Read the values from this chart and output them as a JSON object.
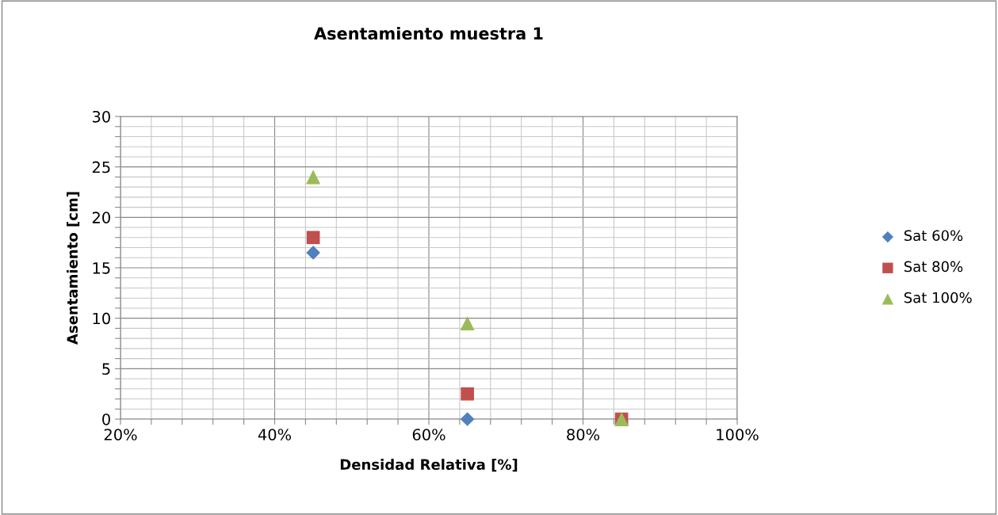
{
  "chart_data": {
    "type": "scatter",
    "title": "Asentamiento muestra 1",
    "xlabel": "Densidad Relativa [%]",
    "ylabel": "Asentamiento [cm]",
    "xlim": [
      20,
      100
    ],
    "ylim": [
      0,
      30
    ],
    "xticks": [
      {
        "value": 20,
        "label": "20%"
      },
      {
        "value": 24,
        "label": null
      },
      {
        "value": 28,
        "label": null
      },
      {
        "value": 32,
        "label": null
      },
      {
        "value": 36,
        "label": null
      },
      {
        "value": 40,
        "label": "40%"
      },
      {
        "value": 44,
        "label": null
      },
      {
        "value": 48,
        "label": null
      },
      {
        "value": 52,
        "label": null
      },
      {
        "value": 56,
        "label": null
      },
      {
        "value": 60,
        "label": "60%"
      },
      {
        "value": 64,
        "label": null
      },
      {
        "value": 68,
        "label": null
      },
      {
        "value": 72,
        "label": null
      },
      {
        "value": 76,
        "label": null
      },
      {
        "value": 80,
        "label": "80%"
      },
      {
        "value": 84,
        "label": null
      },
      {
        "value": 88,
        "label": null
      },
      {
        "value": 92,
        "label": null
      },
      {
        "value": 96,
        "label": null
      },
      {
        "value": 100,
        "label": "100%"
      }
    ],
    "yticks": [
      0,
      {
        "value": 1,
        "label": null
      },
      {
        "value": 2,
        "label": null
      },
      {
        "value": 3,
        "label": null
      },
      {
        "value": 4,
        "label": null
      },
      5,
      {
        "value": 6,
        "label": null
      },
      {
        "value": 7,
        "label": null
      },
      {
        "value": 8,
        "label": null
      },
      {
        "value": 9,
        "label": null
      },
      10,
      {
        "value": 11,
        "label": null
      },
      {
        "value": 12,
        "label": null
      },
      {
        "value": 13,
        "label": null
      },
      {
        "value": 14,
        "label": null
      },
      15,
      {
        "value": 16,
        "label": null
      },
      {
        "value": 17,
        "label": null
      },
      {
        "value": 18,
        "label": null
      },
      {
        "value": 19,
        "label": null
      },
      20,
      {
        "value": 21,
        "label": null
      },
      {
        "value": 22,
        "label": null
      },
      {
        "value": 23,
        "label": null
      },
      {
        "value": 24,
        "label": null
      },
      25,
      {
        "value": 26,
        "label": null
      },
      {
        "value": 27,
        "label": null
      },
      {
        "value": 28,
        "label": null
      },
      {
        "value": 29,
        "label": null
      },
      30
    ],
    "grid": true,
    "legend": "right",
    "series": [
      {
        "name": "Sat 60%",
        "color": "#4f81bd",
        "marker": "diamond",
        "x": [
          45,
          65
        ],
        "values": [
          16.5,
          0
        ]
      },
      {
        "name": "Sat 80%",
        "color": "#c0504d",
        "marker": "square",
        "x": [
          45,
          65,
          85
        ],
        "values": [
          18,
          2.5,
          0
        ]
      },
      {
        "name": "Sat 100%",
        "color": "#9bbb59",
        "marker": "triangle",
        "x": [
          45,
          65,
          85
        ],
        "values": [
          24,
          9.5,
          0
        ]
      }
    ]
  }
}
